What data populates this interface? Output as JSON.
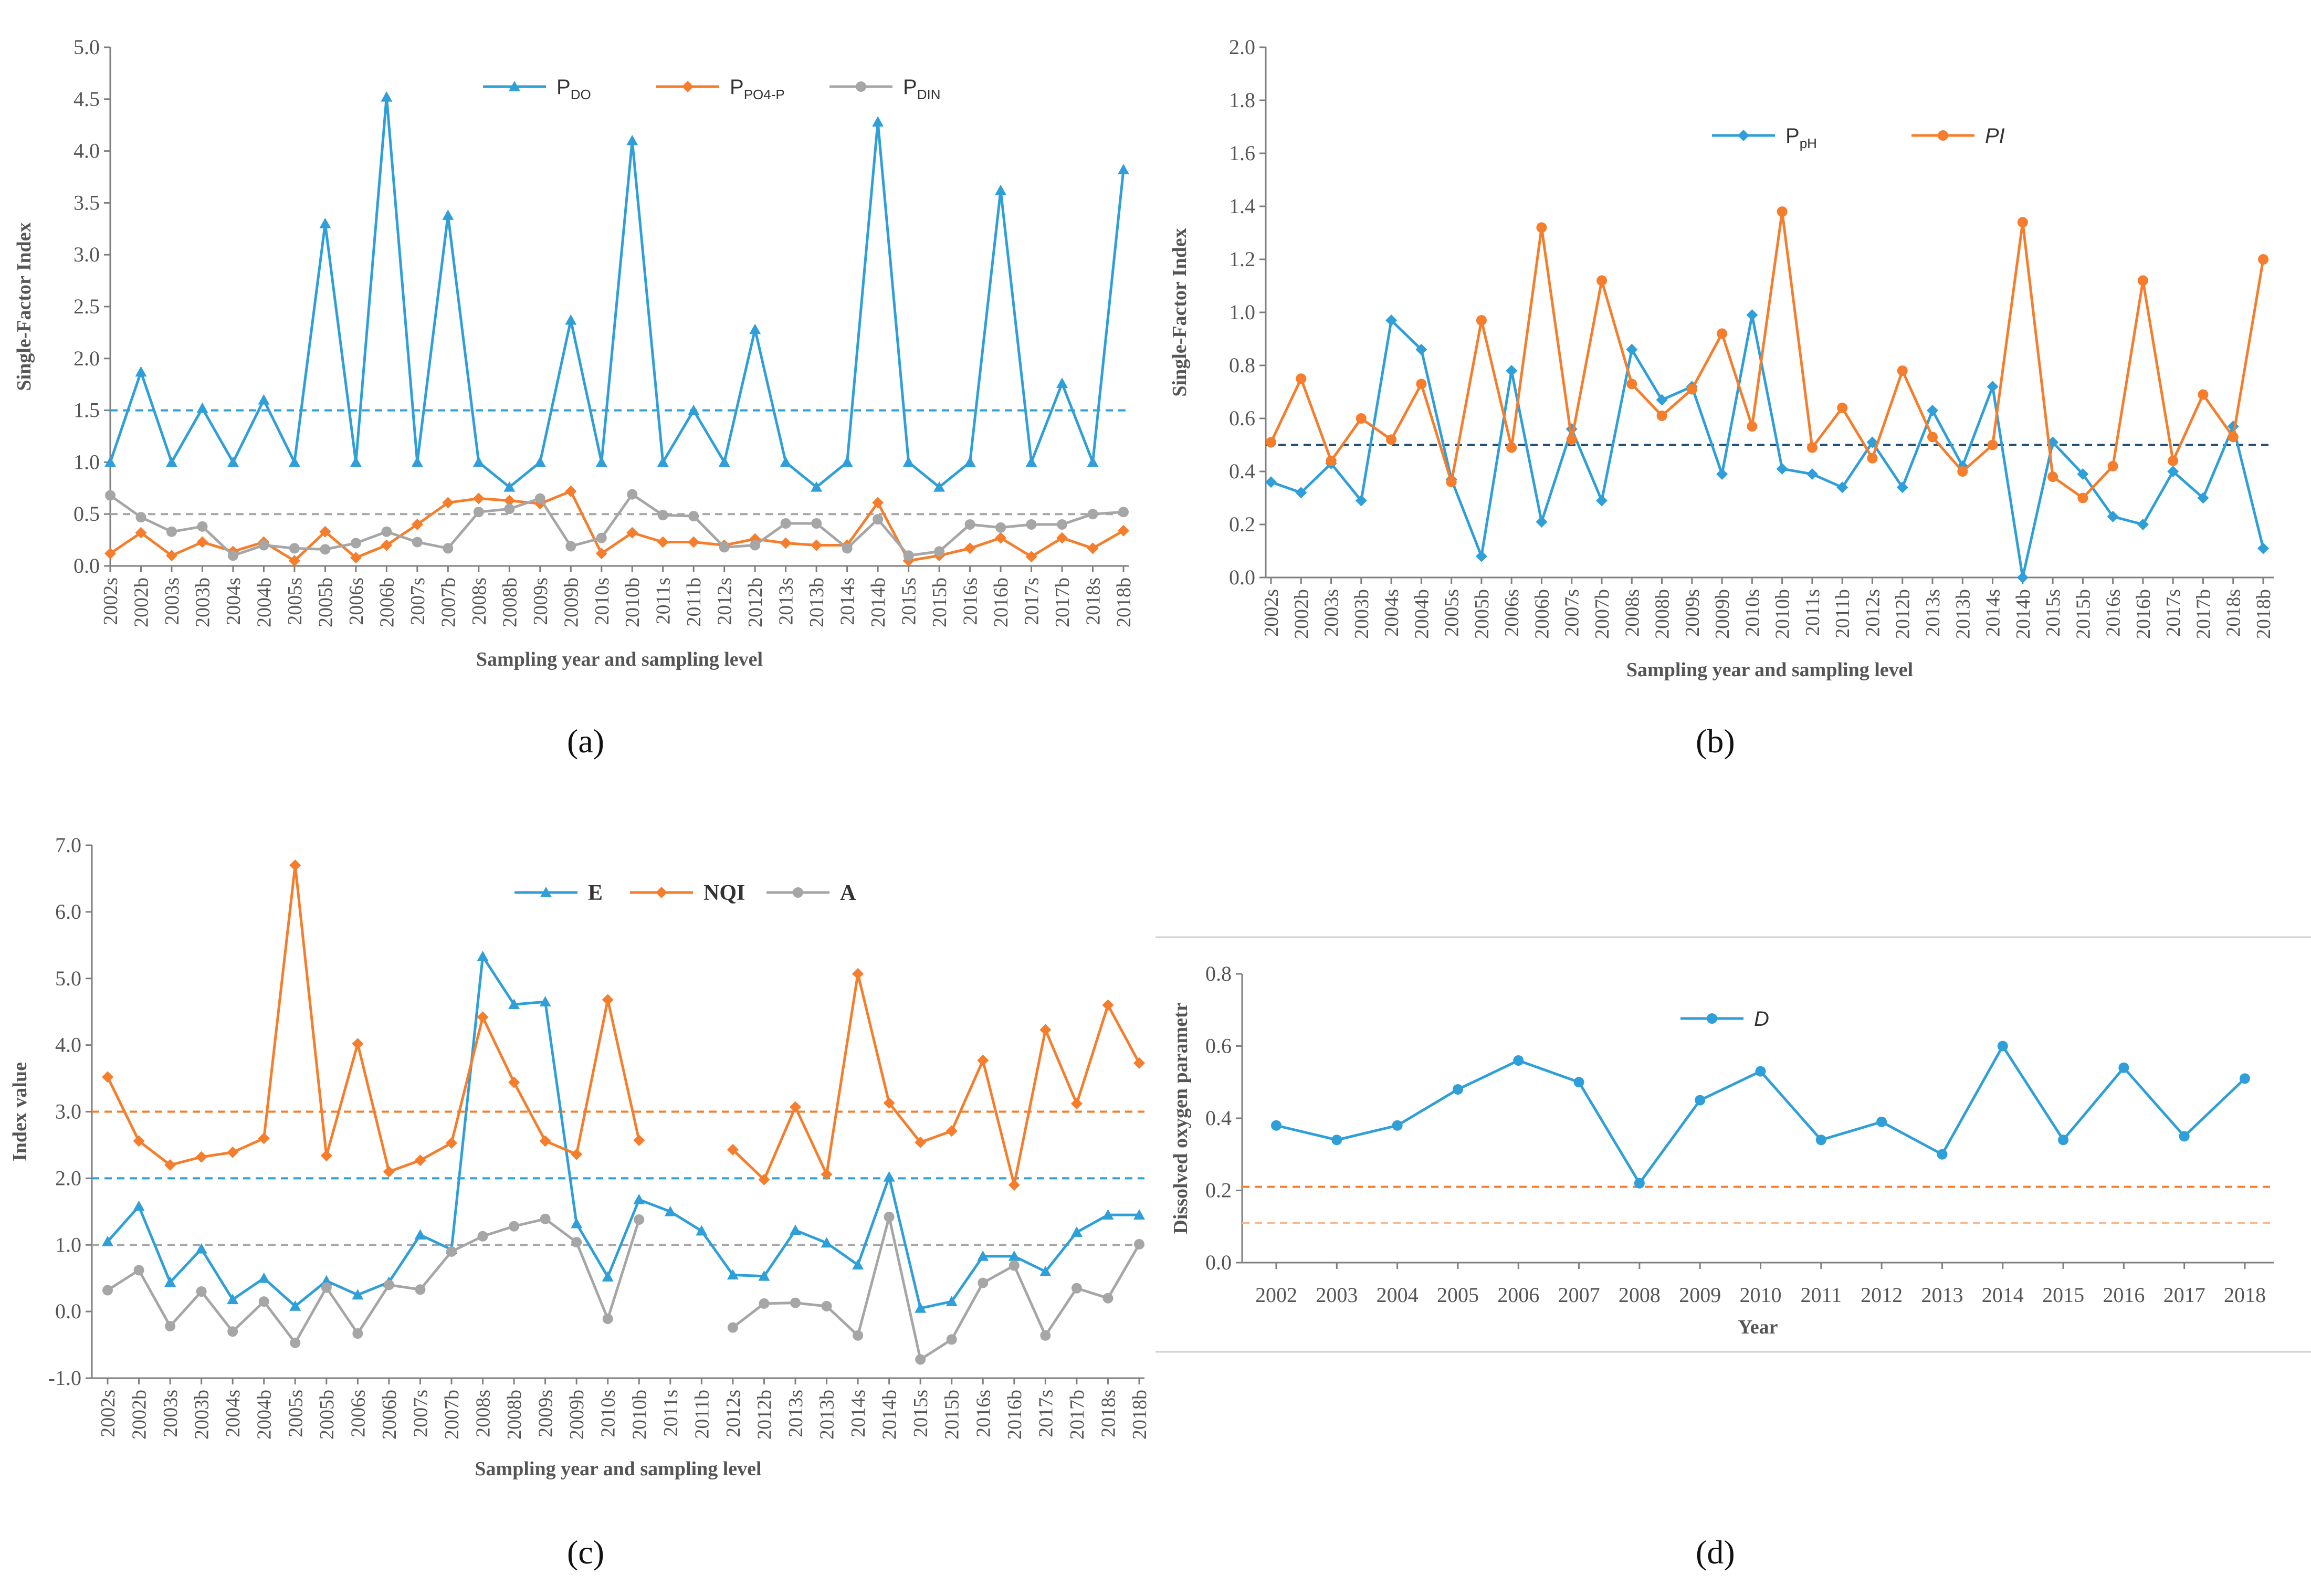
{
  "colors": {
    "blue": "#2e9fd8",
    "orange": "#f57d2b",
    "gray": "#a6a6a6",
    "axis": "#7f7f7f"
  },
  "captions": [
    "(a)",
    "(b)",
    "(c)",
    "(d)"
  ],
  "chart_data": [
    {
      "id": "a",
      "type": "line",
      "title": "",
      "xlabel": "Sampling year and sampling level",
      "ylabel": "Single-Factor Index",
      "ylim": [
        0,
        5
      ],
      "yticks": [
        "0.0",
        "0.5",
        "1.0",
        "1.5",
        "2.0",
        "2.5",
        "3.0",
        "3.5",
        "4.0",
        "4.5",
        "5.0"
      ],
      "categories": [
        "2002s",
        "2002b",
        "2003s",
        "2003b",
        "2004s",
        "2004b",
        "2005s",
        "2005b",
        "2006s",
        "2006b",
        "2007s",
        "2007b",
        "2008s",
        "2008b",
        "2009s",
        "2009b",
        "2010s",
        "2010b",
        "2011s",
        "2011b",
        "2012s",
        "2012b",
        "2013s",
        "2013b",
        "2014s",
        "2014b",
        "2015s",
        "2015b",
        "2016s",
        "2016b",
        "2017s",
        "2017b",
        "2018s",
        "2018b"
      ],
      "series": [
        {
          "name": "P",
          "sub": "DO",
          "color": "#2e9fd8",
          "marker": "triangle",
          "values": [
            1.0,
            1.87,
            1.0,
            1.52,
            1.0,
            1.6,
            1.0,
            3.3,
            1.0,
            4.52,
            1.0,
            3.38,
            1.0,
            0.76,
            1.0,
            2.37,
            1.0,
            4.1,
            1.0,
            1.5,
            1.0,
            2.28,
            1.0,
            0.76,
            1.0,
            4.28,
            1.0,
            0.76,
            1.0,
            3.62,
            1.0,
            1.76,
            1.0,
            3.82
          ]
        },
        {
          "name": "P",
          "sub": "PO4-P",
          "color": "#f57d2b",
          "marker": "diamond",
          "values": [
            0.12,
            0.32,
            0.1,
            0.23,
            0.14,
            0.23,
            0.05,
            0.33,
            0.08,
            0.2,
            0.4,
            0.61,
            0.65,
            0.63,
            0.6,
            0.72,
            0.12,
            0.32,
            0.23,
            0.23,
            0.2,
            0.26,
            0.22,
            0.2,
            0.2,
            0.61,
            0.05,
            0.1,
            0.17,
            0.27,
            0.09,
            0.27,
            0.17,
            0.34
          ]
        },
        {
          "name": "P",
          "sub": "DIN",
          "color": "#a6a6a6",
          "marker": "circle",
          "values": [
            0.68,
            0.47,
            0.33,
            0.38,
            0.1,
            0.2,
            0.17,
            0.16,
            0.22,
            0.33,
            0.23,
            0.17,
            0.52,
            0.55,
            0.65,
            0.19,
            0.27,
            0.69,
            0.49,
            0.48,
            0.18,
            0.2,
            0.41,
            0.41,
            0.17,
            0.45,
            0.1,
            0.14,
            0.4,
            0.37,
            0.4,
            0.4,
            0.5,
            0.52
          ]
        }
      ],
      "reference_lines": [
        {
          "value": 1.5,
          "color": "#2e9fd8"
        },
        {
          "value": 0.5,
          "color": "#a6a6a6"
        }
      ]
    },
    {
      "id": "b",
      "type": "line",
      "title": "",
      "xlabel": "Sampling year and sampling level",
      "ylabel": "Single-Factor Index",
      "ylim": [
        0,
        2
      ],
      "yticks": [
        "0.0",
        "0.2",
        "0.4",
        "0.6",
        "0.8",
        "1.0",
        "1.2",
        "1.4",
        "1.6",
        "1.8",
        "2.0"
      ],
      "categories": [
        "2002s",
        "2002b",
        "2003s",
        "2003b",
        "2004s",
        "2004b",
        "2005s",
        "2005b",
        "2006s",
        "2006b",
        "2007s",
        "2007b",
        "2008s",
        "2008b",
        "2009s",
        "2009b",
        "2010s",
        "2010b",
        "2011s",
        "2011b",
        "2012s",
        "2012b",
        "2013s",
        "2013b",
        "2014s",
        "2014b",
        "2015s",
        "2015b",
        "2016s",
        "2016b",
        "2017s",
        "2017b",
        "2018s",
        "2018b"
      ],
      "series": [
        {
          "name": "P",
          "sub": "pH",
          "color": "#2e9fd8",
          "marker": "diamond",
          "values": [
            0.36,
            0.32,
            0.43,
            0.29,
            0.97,
            0.86,
            0.37,
            0.08,
            0.78,
            0.21,
            0.56,
            0.29,
            0.86,
            0.67,
            0.72,
            0.39,
            0.99,
            0.41,
            0.39,
            0.34,
            0.51,
            0.34,
            0.63,
            0.42,
            0.72,
            0.0,
            0.51,
            0.39,
            0.23,
            0.2,
            0.4,
            0.3,
            0.57,
            0.11
          ]
        },
        {
          "name": "PI",
          "sub": "",
          "color": "#f57d2b",
          "marker": "circle",
          "values": [
            0.51,
            0.75,
            0.44,
            0.6,
            0.52,
            0.73,
            0.36,
            0.97,
            0.49,
            1.32,
            0.52,
            1.12,
            0.73,
            0.61,
            0.71,
            0.92,
            0.57,
            1.38,
            0.49,
            0.64,
            0.45,
            0.78,
            0.53,
            0.4,
            0.5,
            1.34,
            0.38,
            0.3,
            0.42,
            1.12,
            0.44,
            0.69,
            0.53,
            1.2
          ]
        }
      ],
      "reference_lines": [
        {
          "value": 0.5,
          "color": "#1f4e79"
        }
      ]
    },
    {
      "id": "c",
      "type": "line",
      "title": "",
      "xlabel": "Sampling year and sampling level",
      "ylabel": "Index value",
      "ylim": [
        -1,
        7
      ],
      "yticks": [
        "-1.0",
        "0.0",
        "1.0",
        "2.0",
        "3.0",
        "4.0",
        "5.0",
        "6.0",
        "7.0"
      ],
      "categories": [
        "2002s",
        "2002b",
        "2003s",
        "2003b",
        "2004s",
        "2004b",
        "2005s",
        "2005b",
        "2006s",
        "2006b",
        "2007s",
        "2007b",
        "2008s",
        "2008b",
        "2009s",
        "2009b",
        "2010s",
        "2010b",
        "2011s",
        "2011b",
        "2012s",
        "2012b",
        "2013s",
        "2013b",
        "2014s",
        "2014b",
        "2015s",
        "2015b",
        "2016s",
        "2016b",
        "2017s",
        "2017b",
        "2018s",
        "2018b"
      ],
      "series": [
        {
          "name": "E",
          "sub": "",
          "color": "#2e9fd8",
          "marker": "triangle",
          "values": [
            1.05,
            1.58,
            0.44,
            0.94,
            0.18,
            0.5,
            0.08,
            0.46,
            0.25,
            0.44,
            1.15,
            0.93,
            5.33,
            4.61,
            4.65,
            1.32,
            0.52,
            1.68,
            1.5,
            1.21,
            0.55,
            0.53,
            1.22,
            1.03,
            0.7,
            2.02,
            0.05,
            0.15,
            0.83,
            0.83,
            0.6,
            1.19,
            1.45,
            1.45
          ]
        },
        {
          "name": "NQI",
          "sub": "",
          "color": "#f57d2b",
          "marker": "diamond",
          "values": [
            3.52,
            2.56,
            2.2,
            2.32,
            2.39,
            2.6,
            6.7,
            2.34,
            4.02,
            2.1,
            2.27,
            2.53,
            4.42,
            3.44,
            2.56,
            2.36,
            4.68,
            2.57,
            null,
            null,
            2.43,
            1.98,
            3.07,
            2.06,
            5.07,
            3.13,
            2.54,
            2.71,
            3.77,
            1.9,
            4.23,
            3.12,
            4.6,
            3.73
          ]
        },
        {
          "name": "A",
          "sub": "",
          "color": "#a6a6a6",
          "marker": "circle",
          "values": [
            0.32,
            0.62,
            -0.22,
            0.3,
            -0.3,
            0.15,
            -0.47,
            0.36,
            -0.33,
            0.4,
            0.33,
            0.9,
            1.13,
            1.28,
            1.39,
            1.04,
            -0.11,
            1.38,
            null,
            null,
            -0.24,
            0.12,
            0.13,
            0.08,
            -0.36,
            1.42,
            -0.72,
            -0.42,
            0.43,
            0.69,
            -0.36,
            0.35,
            0.2,
            1.01
          ]
        }
      ],
      "reference_lines": [
        {
          "value": 3.0,
          "color": "#f57d2b"
        },
        {
          "value": 2.0,
          "color": "#2e9fd8"
        },
        {
          "value": 1.0,
          "color": "#a6a6a6"
        }
      ]
    },
    {
      "id": "d",
      "type": "line",
      "title": "",
      "xlabel": "Year",
      "ylabel": "Dissolved oxygen parametr",
      "ylim": [
        0,
        0.8
      ],
      "yticks": [
        "0.0",
        "0.2",
        "0.4",
        "0.6",
        "0.8"
      ],
      "categories": [
        "2002",
        "2003",
        "2004",
        "2005",
        "2006",
        "2007",
        "2008",
        "2009",
        "2010",
        "2011",
        "2012",
        "2013",
        "2014",
        "2015",
        "2016",
        "2017",
        "2018"
      ],
      "series": [
        {
          "name": "D",
          "sub": "",
          "color": "#2e9fd8",
          "marker": "circle",
          "values": [
            0.38,
            0.34,
            0.38,
            0.48,
            0.56,
            0.5,
            0.22,
            0.45,
            0.53,
            0.34,
            0.39,
            0.3,
            0.6,
            0.34,
            0.54,
            0.35,
            0.51
          ]
        }
      ],
      "reference_lines": [
        {
          "value": 0.21,
          "color": "#f57d2b"
        },
        {
          "value": 0.11,
          "color": "#f9b98f"
        }
      ]
    }
  ]
}
